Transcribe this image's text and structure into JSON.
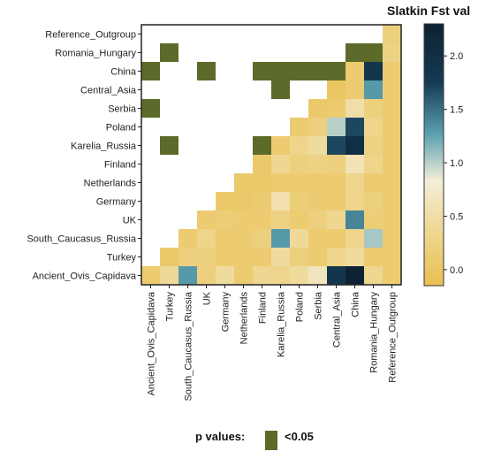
{
  "chart_data": {
    "type": "heatmap",
    "rows": [
      "Reference_Outgroup",
      "Romania_Hungary",
      "China",
      "Central_Asia",
      "Serbia",
      "Poland",
      "Karelia_Russia",
      "Finland",
      "Netherlands",
      "Germany",
      "UK",
      "South_Caucasus_Russia",
      "Turkey",
      "Ancient_Ovis_Capidava"
    ],
    "columns": [
      "Ancient_Ovis_Capidava",
      "Turkey",
      "South_Caucasus_Russia",
      "UK",
      "Germany",
      "Netherlands",
      "Finland",
      "Karelia_Russia",
      "Poland",
      "Serbia",
      "Central_Asia",
      "China",
      "Romania_Hungary",
      "Reference_Outgroup"
    ],
    "fst_values": [
      [
        null,
        null,
        null,
        null,
        null,
        null,
        null,
        null,
        null,
        null,
        null,
        null,
        null,
        0.2
      ],
      [
        null,
        null,
        null,
        null,
        null,
        null,
        null,
        null,
        null,
        null,
        null,
        null,
        0.1,
        0.25
      ],
      [
        null,
        null,
        null,
        null,
        null,
        null,
        null,
        null,
        null,
        null,
        null,
        0.1,
        1.85,
        0.1
      ],
      [
        null,
        null,
        null,
        null,
        null,
        null,
        null,
        null,
        null,
        null,
        0.0,
        0.1,
        1.3,
        0.1
      ],
      [
        null,
        null,
        null,
        null,
        null,
        null,
        null,
        null,
        null,
        0.05,
        0.1,
        0.5,
        0.2,
        0.1
      ],
      [
        null,
        null,
        null,
        null,
        null,
        null,
        null,
        null,
        0.1,
        0.2,
        1.0,
        1.7,
        0.3,
        0.1
      ],
      [
        null,
        null,
        null,
        null,
        null,
        null,
        null,
        0.1,
        0.3,
        0.45,
        1.7,
        2.0,
        0.25,
        0.1
      ],
      [
        null,
        null,
        null,
        null,
        null,
        null,
        0.05,
        0.35,
        0.2,
        0.25,
        0.2,
        0.6,
        0.3,
        0.1
      ],
      [
        null,
        null,
        null,
        null,
        null,
        0.05,
        0.05,
        0.1,
        0.1,
        0.1,
        0.1,
        0.3,
        0.1,
        0.1
      ],
      [
        null,
        null,
        null,
        null,
        0.05,
        0.05,
        0.1,
        0.55,
        0.15,
        0.1,
        0.1,
        0.3,
        0.2,
        0.1
      ],
      [
        null,
        null,
        null,
        0.1,
        0.15,
        0.1,
        0.1,
        0.25,
        0.1,
        0.2,
        0.35,
        1.4,
        0.15,
        0.1
      ],
      [
        null,
        null,
        0.1,
        0.3,
        0.1,
        0.1,
        0.2,
        1.3,
        0.4,
        0.1,
        0.1,
        0.3,
        1.05,
        0.1
      ],
      [
        null,
        0.05,
        0.2,
        0.2,
        0.1,
        0.1,
        0.1,
        0.45,
        0.2,
        0.1,
        0.3,
        0.45,
        0.1,
        0.1
      ],
      [
        0.1,
        0.4,
        1.3,
        0.2,
        0.45,
        0.1,
        0.35,
        0.3,
        0.45,
        0.65,
        1.85,
        2.3,
        0.35,
        0.1
      ]
    ],
    "significant_cells": [
      [
        1,
        1
      ],
      [
        1,
        11
      ],
      [
        1,
        12
      ],
      [
        2,
        0
      ],
      [
        2,
        3
      ],
      [
        2,
        6
      ],
      [
        2,
        7
      ],
      [
        2,
        8
      ],
      [
        2,
        9
      ],
      [
        2,
        10
      ],
      [
        3,
        7
      ],
      [
        4,
        0
      ],
      [
        6,
        1
      ],
      [
        6,
        6
      ]
    ],
    "colorbar": {
      "title": "Slatkin Fst val",
      "range": [
        -0.15,
        2.3
      ],
      "ticks": [
        -0.0,
        0.5,
        1.0,
        1.5,
        2.0
      ],
      "tick_labels": [
        "0.0",
        "0.5",
        "1.0",
        "1.5",
        "2.0"
      ],
      "colors": [
        "#e9c050",
        "#f4eed8",
        "#5aa0b0",
        "#143a52",
        "#0e2233"
      ]
    },
    "significance_color": "#5d6b2a",
    "legend": {
      "title": "p values:",
      "label": "<0.05"
    }
  }
}
